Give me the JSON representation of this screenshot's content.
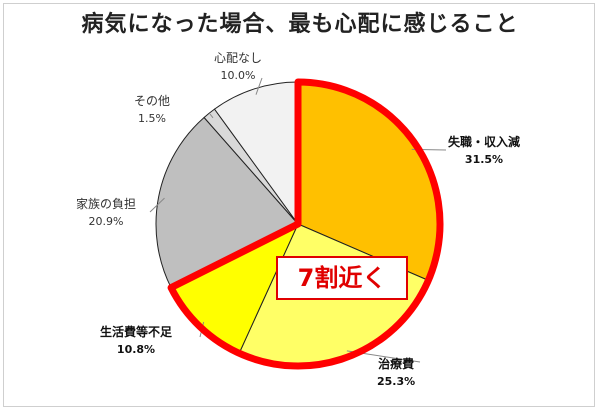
{
  "title": "病気になった場合、最も心配に感じること",
  "callout": "7割近く",
  "chart_data": {
    "type": "pie",
    "title": "病気になった場合、最も心配に感じること",
    "unit": "%",
    "slices": [
      {
        "label": "失職・収入減",
        "value": 31.5,
        "value_label": "31.5%",
        "color": "#FFC000",
        "highlighted": true
      },
      {
        "label": "治療費",
        "value": 25.3,
        "value_label": "25.3%",
        "color": "#FFFF66",
        "highlighted": true
      },
      {
        "label": "生活費等不足",
        "value": 10.8,
        "value_label": "10.8%",
        "color": "#FFFF00",
        "highlighted": true
      },
      {
        "label": "家族の負担",
        "value": 20.9,
        "value_label": "20.9%",
        "color": "#BFBFBF",
        "highlighted": false
      },
      {
        "label": "その他",
        "value": 1.5,
        "value_label": "1.5%",
        "color": "#D9D9D9",
        "highlighted": false
      },
      {
        "label": "心配なし",
        "value": 10.0,
        "value_label": "10.0%",
        "color": "#F2F2F2",
        "highlighted": false
      }
    ],
    "start_angle_deg": 0,
    "direction": "clockwise",
    "highlight_color": "#FF0000"
  }
}
